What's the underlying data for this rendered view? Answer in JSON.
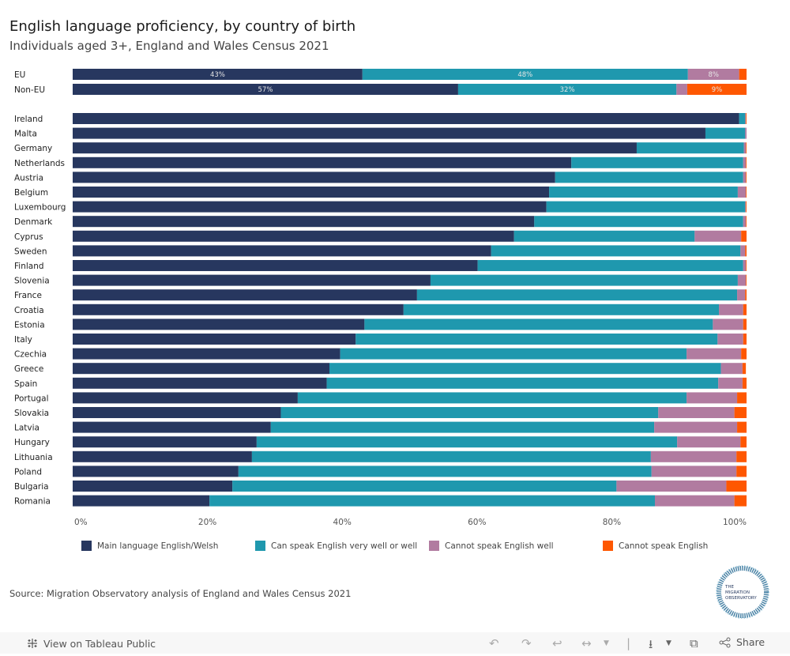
{
  "header": {
    "title": "English language proficiency, by country of birth",
    "subtitle": "Individuals aged 3+, England and Wales Census 2021"
  },
  "chart_data": {
    "type": "bar",
    "orientation": "horizontal",
    "stacked": "100%",
    "title": "English language proficiency, by country of birth",
    "subtitle": "Individuals aged 3+, England and Wales Census 2021",
    "xlabel": "",
    "ylabel": "",
    "xlim": [
      0,
      100
    ],
    "x_ticks": [
      "0%",
      "20%",
      "40%",
      "60%",
      "80%",
      "100%"
    ],
    "grid": false,
    "legend_position": "bottom",
    "colors": {
      "main_language": "#27375f",
      "very_well": "#1f98ae",
      "not_well": "#b17ba0",
      "cannot": "#fe5701"
    },
    "series_names": [
      "Main language English/Welsh",
      "Can speak English very well or well",
      "Cannot speak English well",
      "Cannot speak English"
    ],
    "summary": [
      {
        "name": "EU",
        "values": [
          43.0,
          48.3,
          7.6,
          1.1
        ],
        "labels": [
          "43%",
          "48%",
          "8%",
          ""
        ]
      },
      {
        "name": "Non-EU",
        "values": [
          57.2,
          32.4,
          1.6,
          8.8
        ],
        "labels": [
          "57%",
          "32%",
          "",
          "9%"
        ]
      }
    ],
    "categories": [
      "Ireland",
      "Malta",
      "Germany",
      "Netherlands",
      "Austria",
      "Belgium",
      "Luxembourg",
      "Denmark",
      "Cyprus",
      "Sweden",
      "Finland",
      "Slovenia",
      "France",
      "Croatia",
      "Estonia",
      "Italy",
      "Czechia",
      "Greece",
      "Spain",
      "Portugal",
      "Slovakia",
      "Latvia",
      "Hungary",
      "Lithuania",
      "Poland",
      "Bulgaria",
      "Romania"
    ],
    "series": [
      {
        "name": "Main language English/Welsh",
        "values": [
          98.9,
          93.9,
          83.7,
          74.0,
          71.6,
          70.7,
          70.3,
          68.5,
          65.5,
          62.1,
          60.1,
          53.1,
          51.1,
          49.1,
          43.3,
          42.0,
          39.7,
          38.1,
          37.7,
          33.4,
          30.9,
          29.4,
          27.3,
          26.6,
          24.6,
          23.7,
          20.3
        ]
      },
      {
        "name": "Can speak English very well or well",
        "values": [
          0.9,
          5.9,
          15.9,
          25.5,
          27.9,
          28.0,
          29.5,
          31.0,
          26.8,
          37.0,
          39.4,
          45.6,
          47.5,
          46.8,
          51.7,
          53.7,
          51.4,
          58.1,
          58.1,
          57.7,
          56.0,
          56.9,
          62.4,
          59.2,
          61.3,
          57.0,
          66.1
        ]
      },
      {
        "name": "Cannot speak English well",
        "values": [
          0.1,
          0.2,
          0.3,
          0.4,
          0.4,
          1.2,
          0.1,
          0.4,
          6.9,
          0.7,
          0.4,
          1.2,
          1.2,
          3.6,
          4.5,
          3.8,
          8.1,
          3.2,
          3.6,
          7.5,
          11.3,
          12.3,
          9.4,
          12.7,
          12.6,
          16.3,
          11.8
        ]
      },
      {
        "name": "Cannot speak English",
        "values": [
          0.1,
          0.0,
          0.1,
          0.1,
          0.1,
          0.1,
          0.1,
          0.1,
          0.8,
          0.2,
          0.1,
          0.1,
          0.2,
          0.5,
          0.5,
          0.5,
          0.8,
          0.5,
          0.6,
          1.4,
          1.8,
          1.4,
          0.9,
          1.5,
          1.5,
          3.0,
          1.8
        ]
      }
    ]
  },
  "legend": [
    {
      "label": "Main language English/Welsh",
      "color": "#27375f"
    },
    {
      "label": "Can speak English very well or well",
      "color": "#1f98ae"
    },
    {
      "label": "Cannot speak English well",
      "color": "#b17ba0"
    },
    {
      "label": "Cannot speak English",
      "color": "#fe5701"
    }
  ],
  "source": "Source: Migration Observatory analysis of England and Wales Census 2021",
  "logo": {
    "line1": "THE",
    "line2": "MIGRATION",
    "line3": "OBSERVATORY"
  },
  "footer": {
    "view_link": "View on Tableau Public",
    "share_label": "Share",
    "icons": [
      "undo-icon",
      "redo-icon",
      "revert-icon",
      "refresh-icon",
      "download-icon",
      "fullscreen-icon",
      "share-icon"
    ]
  }
}
